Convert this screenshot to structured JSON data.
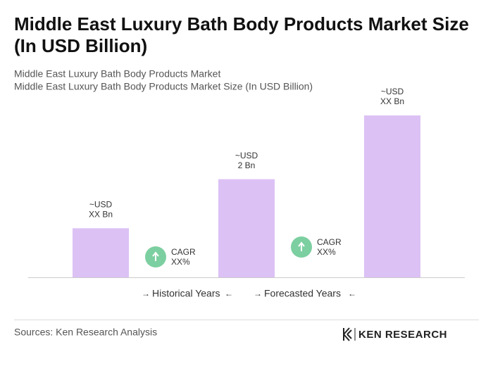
{
  "chart_data": {
    "type": "bar",
    "title": [
      "Middle East Luxury Bath Body Products Market Size",
      "(In USD Billion)"
    ],
    "subtitle": [
      "Middle East Luxury Bath Body Products Market",
      "Middle East Luxury Bath Body Products Market Size (In USD Billion)"
    ],
    "categories": [
      null,
      null,
      null
    ],
    "values": [
      1,
      2,
      3.3
    ],
    "value_labels": [
      [
        "~USD",
        "XX Bn"
      ],
      [
        "~USD",
        "2 Bn"
      ],
      [
        "~USD",
        "XX Bn"
      ]
    ],
    "color": "#dcc1f5",
    "annotations": [
      [
        "CAGR",
        "XX%"
      ],
      [
        "CAGR",
        "XX%"
      ]
    ],
    "periods": [
      "Historical Years",
      "Forecasted Years"
    ],
    "source": "Sources: Ken Research Analysis",
    "logo": "KEN RESEARCH"
  }
}
